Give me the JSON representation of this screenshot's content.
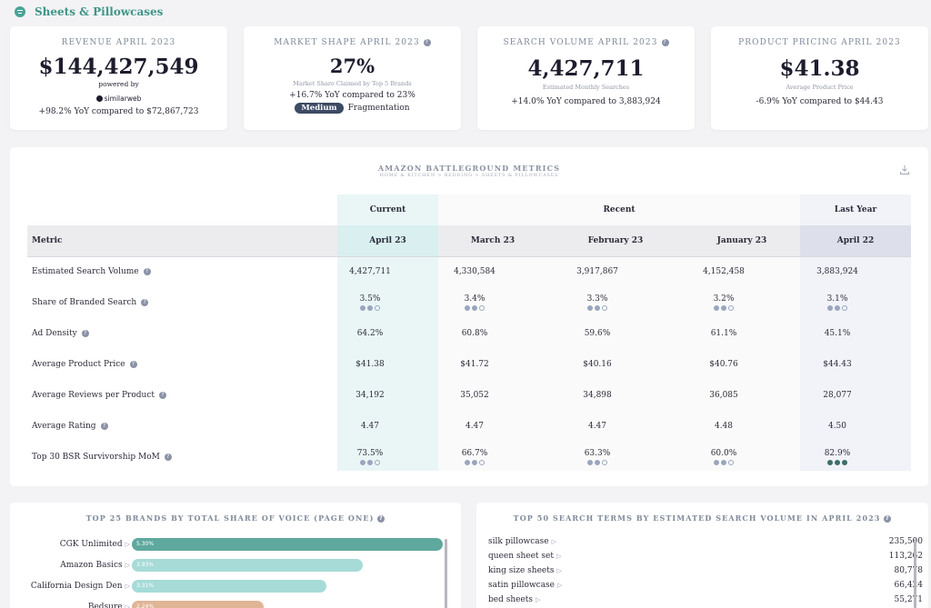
{
  "header": {
    "title": "Sheets & Pillowcases",
    "icon": "filter-icon"
  },
  "kpis": {
    "revenue": {
      "label": "REVENUE APRIL 2023",
      "value": "$144,427,549",
      "powered_by": "powered by",
      "brand": "similarweb",
      "compare": "+98.2% YoY compared to $72,867,723"
    },
    "market_shape": {
      "label": "MARKET SHAPE APRIL 2023",
      "value": "27%",
      "sub": "Market Share Claimed by Top 5 Brands",
      "compare": "+16.7% YoY compared to 23%",
      "badge": "Medium",
      "badge_suffix": "Fragmentation"
    },
    "search_volume": {
      "label": "SEARCH VOLUME APRIL 2023",
      "value": "4,427,711",
      "sub": "Estimated Monthly Searches",
      "compare": "+14.0% YoY compared to 3,883,924"
    },
    "pricing": {
      "label": "PRODUCT PRICING APRIL 2023",
      "value": "$41.38",
      "sub": "Average Product Price",
      "compare": "-6.9% YoY compared to $44.43"
    }
  },
  "metrics": {
    "title": "AMAZON BATTLEGROUND METRICS",
    "subtitle": "HOME & KITCHEN > BEDDING > SHEETS & PILLOWCASES",
    "groups": {
      "current": "Current",
      "recent": "Recent",
      "last_year": "Last Year"
    },
    "columns": [
      "Metric",
      "April 23",
      "March 23",
      "February 23",
      "January 23",
      "April 22"
    ],
    "rows": [
      {
        "name": "Estimated Search Volume",
        "info": true,
        "values": [
          "4,427,711",
          "4,330,584",
          "3,917,867",
          "4,152,458",
          "3,883,924"
        ],
        "dots": null
      },
      {
        "name": "Share of Branded Search",
        "info": true,
        "values": [
          "3.5%",
          "3.4%",
          "3.3%",
          "3.2%",
          "3.1%"
        ],
        "dots": [
          2,
          2,
          2,
          2,
          2
        ]
      },
      {
        "name": "Ad Density",
        "info": true,
        "values": [
          "64.2%",
          "60.8%",
          "59.6%",
          "61.1%",
          "45.1%"
        ],
        "dots": null
      },
      {
        "name": "Average Product Price",
        "info": true,
        "values": [
          "$41.38",
          "$41.72",
          "$40.16",
          "$40.76",
          "$44.43"
        ],
        "dots": null
      },
      {
        "name": "Average Reviews per Product",
        "info": true,
        "values": [
          "34,192",
          "35,052",
          "34,898",
          "36,085",
          "28,077"
        ],
        "dots": null
      },
      {
        "name": "Average Rating",
        "info": true,
        "values": [
          "4.47",
          "4.47",
          "4.47",
          "4.48",
          "4.50"
        ],
        "dots": null
      },
      {
        "name": "Top 30 BSR Survivorship MoM",
        "info": true,
        "values": [
          "73.5%",
          "66.7%",
          "63.3%",
          "60.0%",
          "82.9%"
        ],
        "dots": [
          2,
          2,
          2,
          2,
          3
        ]
      }
    ]
  },
  "brands": {
    "title": "TOP 25 BRANDS BY TOTAL SHARE OF VOICE (PAGE ONE)",
    "items": [
      {
        "name": "CGK Unlimited",
        "value": 5.3,
        "label": "5.30%",
        "color": "#5fa89e"
      },
      {
        "name": "Amazon Basics",
        "value": 3.93,
        "label": "3.93%",
        "color": "#a6dbd8"
      },
      {
        "name": "California Design Den",
        "value": 3.31,
        "label": "3.31%",
        "color": "#a6dbd8"
      },
      {
        "name": "Bedsure",
        "value": 2.24,
        "label": "2.24%",
        "color": "#e0b596"
      }
    ]
  },
  "terms": {
    "title": "TOP 50 SEARCH TERMS BY ESTIMATED SEARCH VOLUME IN APRIL 2023",
    "items": [
      {
        "term": "silk pillowcase",
        "volume": "235,500"
      },
      {
        "term": "queen sheet set",
        "volume": "113,262"
      },
      {
        "term": "king size sheets",
        "volume": "80,778"
      },
      {
        "term": "satin pillowcase",
        "volume": "66,424"
      },
      {
        "term": "bed sheets",
        "volume": "55,271"
      }
    ]
  }
}
